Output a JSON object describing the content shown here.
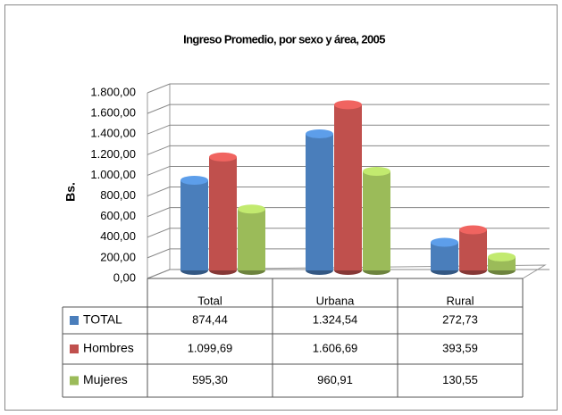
{
  "chart_data": {
    "type": "bar",
    "title": "Ingreso Promedio,  por sexo y área, 2005",
    "y_label": "Bs.",
    "categories": [
      "Total",
      "Urbana",
      "Rural"
    ],
    "series": [
      {
        "name": "TOTAL",
        "color": "#4a7ebb",
        "values": [
          874.44,
          1324.54,
          272.73
        ],
        "value_labels": [
          "874,44",
          "1.324,54",
          "272,73"
        ]
      },
      {
        "name": "Hombres",
        "color": "#c0504d",
        "values": [
          1099.69,
          1606.69,
          393.59
        ],
        "value_labels": [
          "1.099,69",
          "1.606,69",
          "393,59"
        ]
      },
      {
        "name": "Mujeres",
        "color": "#9bbb59",
        "values": [
          595.3,
          960.91,
          130.55
        ],
        "value_labels": [
          "595,30",
          "960,91",
          "130,55"
        ]
      }
    ],
    "ylim": [
      0,
      1800
    ],
    "yticks": [
      {
        "value": 0,
        "label": "0,00"
      },
      {
        "value": 200,
        "label": "200,00"
      },
      {
        "value": 400,
        "label": "400,00"
      },
      {
        "value": 600,
        "label": "600,00"
      },
      {
        "value": 800,
        "label": "800,00"
      },
      {
        "value": 1000,
        "label": "1.000,00"
      },
      {
        "value": 1200,
        "label": "1.200,00"
      },
      {
        "value": 1400,
        "label": "1.400,00"
      },
      {
        "value": 1600,
        "label": "1.600,00"
      },
      {
        "value": 1800,
        "label": "1.800,00"
      }
    ],
    "grid": true,
    "data_table": true
  }
}
